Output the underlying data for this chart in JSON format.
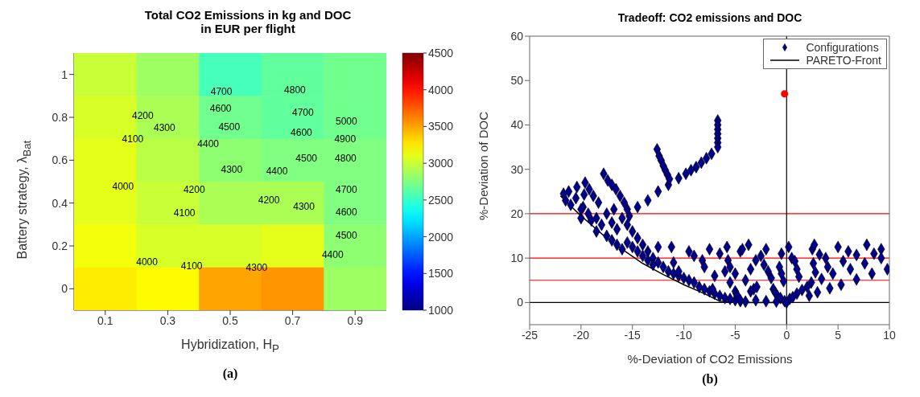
{
  "chart_data": [
    {
      "type": "heatmap",
      "title": "Total CO2 Emissions in kg and DOC in EUR per flight",
      "xlabel": "Hybridization, H$_{P}$",
      "ylabel": "Battery strategy, λ$_{Bat}$",
      "categories": [
        "0.1",
        "0.3",
        "0.5",
        "0.7",
        "0.9"
      ],
      "y_categories": [
        "1",
        "0.8",
        "0.6",
        "0.4",
        "0.2",
        "0"
      ],
      "cells": [
        [
          3000,
          2850,
          2550,
          2650,
          2700
        ],
        [
          3050,
          2900,
          2700,
          2650,
          2700
        ],
        [
          3100,
          2950,
          2800,
          2750,
          2750
        ],
        [
          3100,
          3000,
          2900,
          2900,
          2750
        ],
        [
          3150,
          3050,
          3050,
          3100,
          2800
        ],
        [
          3250,
          3200,
          3500,
          3550,
          2850
        ]
      ],
      "clim": [
        1000,
        4500
      ],
      "cticks": [
        1000,
        1500,
        2000,
        2500,
        3000,
        3500,
        4000,
        4500
      ],
      "annotations": [
        "4700",
        "4800",
        "4600",
        "4700",
        "4500",
        "4600",
        "4400",
        "4500",
        "4300",
        "4400",
        "4200",
        "4300",
        "4100",
        "4200",
        "4000",
        "4100",
        "4200",
        "4300",
        "4000",
        "4100",
        "4300",
        "5000",
        "4900",
        "4800",
        "4700",
        "4600",
        "4500",
        "4400",
        "(a)"
      ]
    },
    {
      "type": "scatter",
      "title": "Tradeoff: CO2 emissions and DOC",
      "xlabel": "%-Deviation of CO2 Emissions",
      "ylabel": "%-Deviation of DOC",
      "xlim": [
        -25,
        10
      ],
      "xticks": [
        -25,
        -20,
        -15,
        -10,
        -5,
        0,
        5,
        10
      ],
      "ylim": [
        -5,
        60
      ],
      "yticks": [
        0,
        10,
        20,
        30,
        40,
        50,
        60
      ],
      "legend": "top right",
      "grid": false,
      "series": [
        {
          "name": "Configurations",
          "color": "#00008b",
          "marker": "diamond",
          "x": [
            -6.7,
            -6.7,
            -6.7,
            -6.7,
            -6.7,
            -6.7,
            -6.7,
            -14.5,
            -13.5,
            -12.5,
            -11.5,
            -10.5,
            -9.8,
            -9.3,
            -8.8,
            -8.3,
            -7.8,
            -7.3,
            -12.6,
            -12.4,
            -12.2,
            -12,
            -11.8,
            -11.6,
            -11.4,
            -17.8,
            -17.4,
            -17,
            -16.6,
            -16.2,
            -15.8,
            -15.5,
            -15.3,
            -21.7,
            -21.2,
            -20.4,
            -19.6,
            -19.2,
            -18.8,
            -18.3,
            -19.7,
            -20.5,
            -19.8,
            -19.3,
            -21,
            -20,
            -18.5,
            -18,
            -17.5,
            -17,
            -16.5,
            -16.8,
            -16,
            -15.5,
            -15,
            -14.5,
            -14,
            -13.5,
            -13,
            -12.5,
            -17.5,
            -17,
            -16.5,
            -16,
            -15.5,
            -15,
            -14.5,
            -14,
            -13.5,
            -13,
            -12,
            -11.5,
            -11,
            -10.5,
            -10,
            -9.5,
            -9,
            -8.5,
            -8,
            -7.5,
            -7,
            -6.5,
            -6,
            -5.5,
            -5,
            -4.5,
            -4,
            -18.5,
            -19,
            -20,
            -21.5,
            -12.5,
            -11.2,
            -11,
            -10.5,
            -9.5,
            -9,
            -8.2,
            -8,
            -7.5,
            -7,
            -6.5,
            -6,
            -5.8,
            -5.7,
            -5.5,
            -5,
            -4.5,
            -4.3,
            -4,
            -3.5,
            -3.7,
            -3,
            -2.5,
            -2.2,
            -2,
            -1.8,
            -1.5,
            -0.7,
            -0.5,
            -0.5,
            -0.3,
            0.2,
            0.5,
            0.8,
            1,
            1.2,
            2.5,
            2.7,
            2.6,
            2.8,
            2.4,
            3.2,
            3.4,
            3.8,
            4,
            4.2,
            4.5,
            5,
            5.5,
            5.3,
            6,
            6.2,
            6.8,
            6.8,
            7.8,
            7.6,
            8.3,
            9.2,
            9.2,
            9.8,
            8.5,
            -5,
            -4.9,
            -4.8,
            -3.5,
            -3.2,
            -2.9,
            -1.3,
            -1.1,
            -0.9,
            -0.6,
            -0.2,
            0,
            0.3,
            0.6,
            1,
            1.5,
            2,
            2.2,
            3,
            -3,
            -2,
            -1,
            -7.2,
            -5.5,
            -4.5
          ],
          "values": [
            41,
            40,
            39,
            38,
            37,
            36,
            35,
            21.5,
            23,
            25,
            26.5,
            28,
            29,
            29.8,
            30.5,
            31.5,
            32.5,
            33.5,
            34.5,
            33,
            32,
            30.8,
            29.8,
            28.8,
            27.8,
            29,
            27.5,
            26.5,
            25.5,
            24,
            22.5,
            21,
            19.5,
            24.5,
            25,
            26,
            27,
            25.5,
            24,
            22.5,
            24.3,
            23.5,
            21.5,
            20,
            22,
            19,
            19,
            17.5,
            20,
            18,
            16.5,
            21,
            19,
            17.5,
            16,
            14.5,
            13,
            11.5,
            10,
            9,
            15,
            14,
            13,
            12,
            13.5,
            12.5,
            11.5,
            10.5,
            9.5,
            8.5,
            8,
            7,
            6.5,
            6,
            5.5,
            5,
            4.5,
            3.5,
            3,
            2.5,
            2,
            1.5,
            1,
            0.8,
            0.5,
            0.3,
            0.2,
            16,
            18.5,
            21,
            23,
            12.5,
            12.5,
            9,
            7,
            11.5,
            10.5,
            9.5,
            8,
            12,
            6,
            11,
            7,
            12.5,
            9.5,
            8,
            6.5,
            11.5,
            12,
            5,
            7.5,
            13,
            9.5,
            10.5,
            8.5,
            12,
            7,
            5.5,
            8,
            6.5,
            11,
            4.8,
            12.5,
            10,
            9.3,
            7.5,
            5.8,
            12,
            13,
            8.8,
            6.8,
            4.5,
            10.8,
            5.3,
            10,
            8,
            3.2,
            6.5,
            12.5,
            9.3,
            4,
            11.5,
            7.5,
            10.7,
            5.2,
            13,
            8.8,
            6.5,
            12,
            10,
            7.5,
            11,
            2.5,
            2,
            1.5,
            2.5,
            3,
            3.5,
            3,
            2.2,
            1.5,
            1,
            0.3,
            0,
            0.8,
            1.2,
            2,
            2.8,
            3.5,
            1.5,
            2.3,
            0.5,
            0.3,
            0.2,
            3,
            4.5,
            0.5
          ]
        },
        {
          "name": "PARETO-Front",
          "type": "line",
          "color": "#000000",
          "marker": "none",
          "line_style": "solid",
          "x": [
            -22,
            -20,
            -18,
            -16,
            -14,
            -12,
            -10,
            -8,
            -6.5,
            -4,
            0
          ],
          "values": [
            24,
            19.5,
            15.5,
            12,
            8.8,
            6.3,
            4,
            2,
            0.3,
            0,
            0
          ]
        },
        {
          "color": "#ff0000",
          "marker": "circle",
          "x": [
            -0.2
          ],
          "values": [
            47
          ]
        }
      ],
      "ref_lines": [
        {
          "axis": "y",
          "value": 20,
          "color": "#ff0000",
          "line_style": "solid"
        },
        {
          "axis": "y",
          "value": 10,
          "color": "#ff0000",
          "line_style": "solid"
        },
        {
          "axis": "y",
          "value": 5,
          "color": "#ff0000",
          "line_style": "solid"
        },
        {
          "axis": "y",
          "value": 0,
          "color": "#000000",
          "line_style": "solid"
        },
        {
          "axis": "x",
          "value": 0,
          "color": "#000000",
          "line_style": "solid"
        }
      ],
      "annotations": [
        "(b)"
      ]
    }
  ]
}
